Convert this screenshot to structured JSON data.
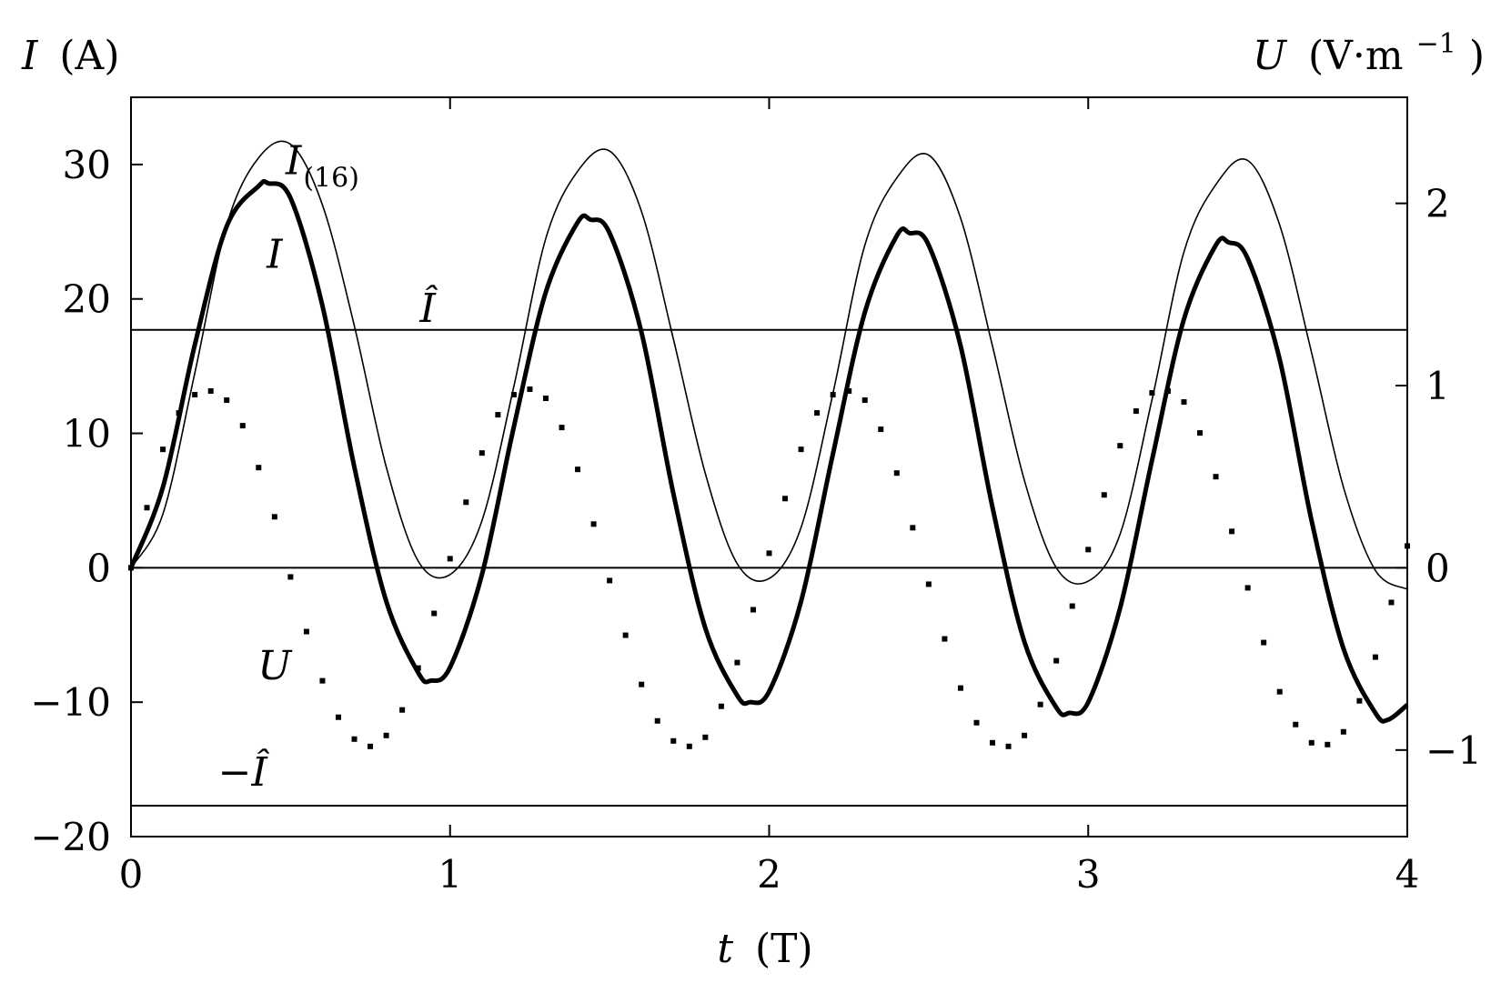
{
  "chart_data": {
    "type": "line",
    "title": "",
    "xlabel": {
      "var": "t",
      "unit": "(T)"
    },
    "ylabel_left": {
      "var": "I",
      "unit": "(A)"
    },
    "ylabel_right": {
      "var": "U",
      "unit_pre": "(V·m",
      "unit_exp": "−1",
      "unit_post": ")"
    },
    "xlim": [
      0,
      4
    ],
    "ylim_left": [
      -20,
      35
    ],
    "ylim_right": [
      -1.475,
      2.582
    ],
    "grid": false,
    "xticks": [
      {
        "value": 0,
        "label": "0"
      },
      {
        "value": 1,
        "label": "1"
      },
      {
        "value": 2,
        "label": "2"
      },
      {
        "value": 3,
        "label": "3"
      },
      {
        "value": 4,
        "label": "4"
      }
    ],
    "yticks_left": [
      {
        "value": -20,
        "label": "−20"
      },
      {
        "value": -10,
        "label": "−10"
      },
      {
        "value": 0,
        "label": "0"
      },
      {
        "value": 10,
        "label": "10"
      },
      {
        "value": 20,
        "label": "20"
      },
      {
        "value": 30,
        "label": "30"
      }
    ],
    "yticks_right": [
      {
        "value": -1,
        "label": "−1"
      },
      {
        "value": 0,
        "label": "0"
      },
      {
        "value": 1,
        "label": "1"
      },
      {
        "value": 2,
        "label": "2"
      }
    ],
    "series": [
      {
        "name": "I",
        "axis": "left",
        "style": "thick",
        "x": [
          0,
          0.1,
          0.2,
          0.3,
          0.4,
          0.43,
          0.5,
          0.6,
          0.7,
          0.8,
          0.9,
          0.94,
          1.0,
          1.1,
          1.2,
          1.3,
          1.4,
          1.44,
          1.5,
          1.6,
          1.7,
          1.8,
          1.9,
          1.94,
          2.0,
          2.1,
          2.2,
          2.3,
          2.4,
          2.44,
          2.5,
          2.6,
          2.7,
          2.8,
          2.9,
          2.94,
          3.0,
          3.1,
          3.2,
          3.3,
          3.4,
          3.44,
          3.5,
          3.6,
          3.7,
          3.8,
          3.9,
          3.94,
          4.0
        ],
        "y": [
          0,
          6.0,
          16.6,
          25.4,
          28.4,
          28.6,
          27.5,
          19.5,
          7.5,
          -2.5,
          -7.8,
          -8.4,
          -7.4,
          -0.5,
          10.5,
          20.5,
          25.7,
          25.9,
          24.9,
          17.5,
          5.5,
          -4.5,
          -9.5,
          -10.0,
          -9.2,
          -2.5,
          8.5,
          19.0,
          24.7,
          24.9,
          24.0,
          16.5,
          4.5,
          -5.5,
          -10.4,
          -10.8,
          -10.0,
          -3.0,
          8.0,
          18.5,
          24.0,
          24.2,
          23.0,
          15.5,
          3.5,
          -6.0,
          -10.8,
          -11.3,
          -10.2
        ]
      },
      {
        "name": "I(16)",
        "axis": "left",
        "style": "thin",
        "x": [
          0,
          0.1,
          0.2,
          0.3,
          0.4,
          0.5,
          0.6,
          0.7,
          0.8,
          0.9,
          1.0,
          1.1,
          1.2,
          1.3,
          1.4,
          1.5,
          1.6,
          1.7,
          1.8,
          1.9,
          2.0,
          2.1,
          2.2,
          2.3,
          2.4,
          2.5,
          2.6,
          2.7,
          2.8,
          2.9,
          3.0,
          3.1,
          3.2,
          3.3,
          3.4,
          3.5,
          3.6,
          3.7,
          3.8,
          3.9,
          4.0
        ],
        "y": [
          0,
          4.0,
          14.5,
          25.5,
          30.5,
          31.5,
          27.0,
          18.0,
          7.5,
          0.5,
          -0.5,
          3.5,
          13.5,
          24.5,
          29.5,
          31.0,
          26.5,
          17.0,
          7.0,
          0.3,
          -0.8,
          3.0,
          13.0,
          24.0,
          29.0,
          30.7,
          26.0,
          16.5,
          6.5,
          0.0,
          -1.0,
          2.5,
          12.5,
          23.5,
          28.5,
          30.3,
          25.5,
          16.0,
          6.0,
          -0.2,
          -1.6
        ]
      },
      {
        "name": "U",
        "axis": "right",
        "style": "dotted",
        "x": [
          0,
          0.05,
          0.1,
          0.15,
          0.2,
          0.25,
          0.3,
          0.35,
          0.4,
          0.45,
          0.5,
          0.55,
          0.6,
          0.65,
          0.7,
          0.75,
          0.8,
          0.85,
          0.9,
          0.95,
          1.0,
          1.05,
          1.1,
          1.15,
          1.2,
          1.25,
          1.3,
          1.35,
          1.4,
          1.45,
          1.5,
          1.55,
          1.6,
          1.65,
          1.7,
          1.75,
          1.8,
          1.85,
          1.9,
          1.95,
          2.0,
          2.05,
          2.1,
          2.15,
          2.2,
          2.25,
          2.3,
          2.35,
          2.4,
          2.45,
          2.5,
          2.55,
          2.6,
          2.65,
          2.7,
          2.75,
          2.8,
          2.85,
          2.9,
          2.95,
          3.0,
          3.05,
          3.1,
          3.15,
          3.2,
          3.25,
          3.3,
          3.35,
          3.4,
          3.45,
          3.5,
          3.55,
          3.6,
          3.65,
          3.7,
          3.75,
          3.8,
          3.85,
          3.9,
          3.95,
          4.0
        ],
        "y": [
          0,
          0.33,
          0.65,
          0.85,
          0.95,
          0.97,
          0.92,
          0.78,
          0.55,
          0.28,
          -0.05,
          -0.35,
          -0.62,
          -0.82,
          -0.94,
          -0.98,
          -0.92,
          -0.78,
          -0.55,
          -0.25,
          0.05,
          0.36,
          0.63,
          0.84,
          0.95,
          0.98,
          0.93,
          0.77,
          0.54,
          0.24,
          -0.07,
          -0.37,
          -0.64,
          -0.84,
          -0.95,
          -0.98,
          -0.93,
          -0.76,
          -0.52,
          -0.23,
          0.08,
          0.38,
          0.65,
          0.85,
          0.95,
          0.97,
          0.92,
          0.76,
          0.52,
          0.22,
          -0.09,
          -0.39,
          -0.66,
          -0.85,
          -0.96,
          -0.98,
          -0.92,
          -0.75,
          -0.51,
          -0.21,
          0.1,
          0.4,
          0.67,
          0.86,
          0.96,
          0.97,
          0.91,
          0.74,
          0.5,
          0.2,
          -0.11,
          -0.41,
          -0.68,
          -0.86,
          -0.96,
          -0.97,
          -0.9,
          -0.73,
          -0.49,
          -0.19,
          0.12
        ]
      }
    ],
    "hlines": [
      {
        "name": "Î",
        "axis": "left",
        "value": 17.7
      },
      {
        "name": "−Î",
        "axis": "left",
        "value": -17.7
      },
      {
        "name": "zero",
        "axis": "left",
        "value": 0
      }
    ],
    "annotations": [
      {
        "id": "I16",
        "base": "I",
        "sub": "(16)",
        "x": 0.6,
        "y": 29.3
      },
      {
        "id": "I",
        "base": "I",
        "sub": "",
        "x": 0.45,
        "y": 22.3
      },
      {
        "id": "Ihat",
        "base": "Î",
        "sub": "",
        "x": 0.93,
        "y": 18.3
      },
      {
        "id": "U",
        "base": "U",
        "sub": "",
        "x": 0.45,
        "y": -8.3
      },
      {
        "id": "minusIhat",
        "base": "−Î",
        "sub": "",
        "x": 0.35,
        "y": -16.2
      }
    ]
  }
}
